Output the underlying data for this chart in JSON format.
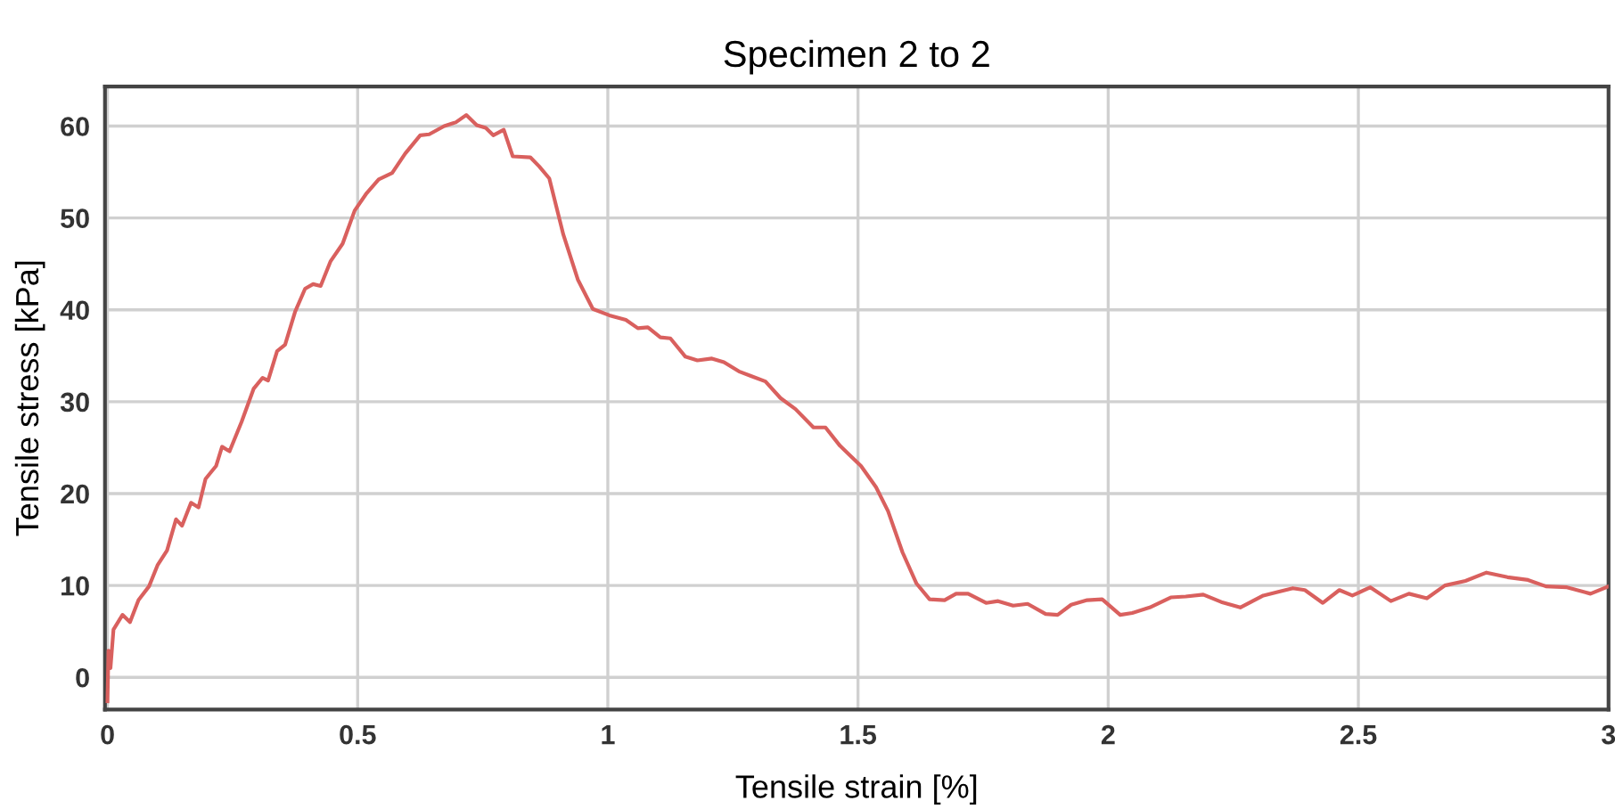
{
  "chart_data": {
    "type": "line",
    "title": "Specimen 2 to 2",
    "xlabel": "Tensile strain [%]",
    "ylabel": "Tensile stress [kPa]",
    "xlim": [
      -0.005,
      3
    ],
    "ylim": [
      -3.5,
      64.3
    ],
    "xticks": [
      0,
      0.5,
      1,
      1.5,
      2,
      2.5,
      3
    ],
    "yticks": [
      0,
      10,
      20,
      30,
      40,
      50,
      60
    ],
    "grid": true,
    "marker": "none",
    "line_style": "solid",
    "series": [
      {
        "color": "#d9605e",
        "x": [
          0,
          0.002,
          0.006,
          0.012,
          0.03,
          0.045,
          0.062,
          0.083,
          0.1,
          0.119,
          0.137,
          0.149,
          0.167,
          0.182,
          0.196,
          0.217,
          0.229,
          0.244,
          0.268,
          0.292,
          0.31,
          0.321,
          0.339,
          0.355,
          0.375,
          0.395,
          0.411,
          0.426,
          0.446,
          0.47,
          0.494,
          0.518,
          0.542,
          0.569,
          0.595,
          0.625,
          0.643,
          0.673,
          0.696,
          0.717,
          0.738,
          0.756,
          0.771,
          0.792,
          0.81,
          0.845,
          0.863,
          0.883,
          0.911,
          0.94,
          0.97,
          1.003,
          1.036,
          1.06,
          1.08,
          1.105,
          1.125,
          1.155,
          1.179,
          1.208,
          1.232,
          1.262,
          1.286,
          1.315,
          1.345,
          1.375,
          1.411,
          1.435,
          1.464,
          1.506,
          1.536,
          1.56,
          1.589,
          1.617,
          1.643,
          1.673,
          1.696,
          1.72,
          1.756,
          1.78,
          1.81,
          1.839,
          1.875,
          1.899,
          1.926,
          1.958,
          1.988,
          2.024,
          2.048,
          2.083,
          2.125,
          2.155,
          2.19,
          2.226,
          2.264,
          2.31,
          2.34,
          2.369,
          2.393,
          2.429,
          2.462,
          2.488,
          2.524,
          2.565,
          2.601,
          2.637,
          2.673,
          2.714,
          2.756,
          2.798,
          2.839,
          2.875,
          2.917,
          2.964,
          3.0
        ],
        "values": [
          -2.6,
          2.9,
          1.0,
          5.2,
          6.8,
          6.0,
          8.4,
          9.9,
          12.2,
          13.8,
          17.2,
          16.5,
          19.0,
          18.5,
          21.6,
          23.0,
          25.1,
          24.6,
          27.8,
          31.4,
          32.6,
          32.3,
          35.5,
          36.2,
          39.8,
          42.3,
          42.8,
          42.6,
          45.3,
          47.2,
          50.8,
          52.7,
          54.2,
          54.9,
          57.0,
          59.0,
          59.1,
          60.0,
          60.4,
          61.2,
          60.1,
          59.8,
          59.0,
          59.6,
          56.7,
          56.6,
          55.6,
          54.3,
          48.2,
          43.3,
          40.1,
          39.4,
          38.9,
          38.0,
          38.1,
          37.0,
          36.9,
          34.9,
          34.5,
          34.7,
          34.3,
          33.3,
          32.8,
          32.2,
          30.4,
          29.2,
          27.2,
          27.2,
          25.2,
          23.0,
          20.7,
          18.1,
          13.6,
          10.2,
          8.5,
          8.4,
          9.1,
          9.1,
          8.1,
          8.3,
          7.8,
          8.0,
          6.9,
          6.8,
          7.9,
          8.4,
          8.5,
          6.8,
          7.0,
          7.6,
          8.7,
          8.8,
          9.0,
          8.2,
          7.6,
          8.9,
          9.3,
          9.7,
          9.5,
          8.1,
          9.5,
          8.9,
          9.8,
          8.3,
          9.1,
          8.6,
          10.0,
          10.5,
          11.4,
          10.9,
          10.6,
          9.9,
          9.8,
          9.1,
          9.9
        ]
      }
    ]
  }
}
